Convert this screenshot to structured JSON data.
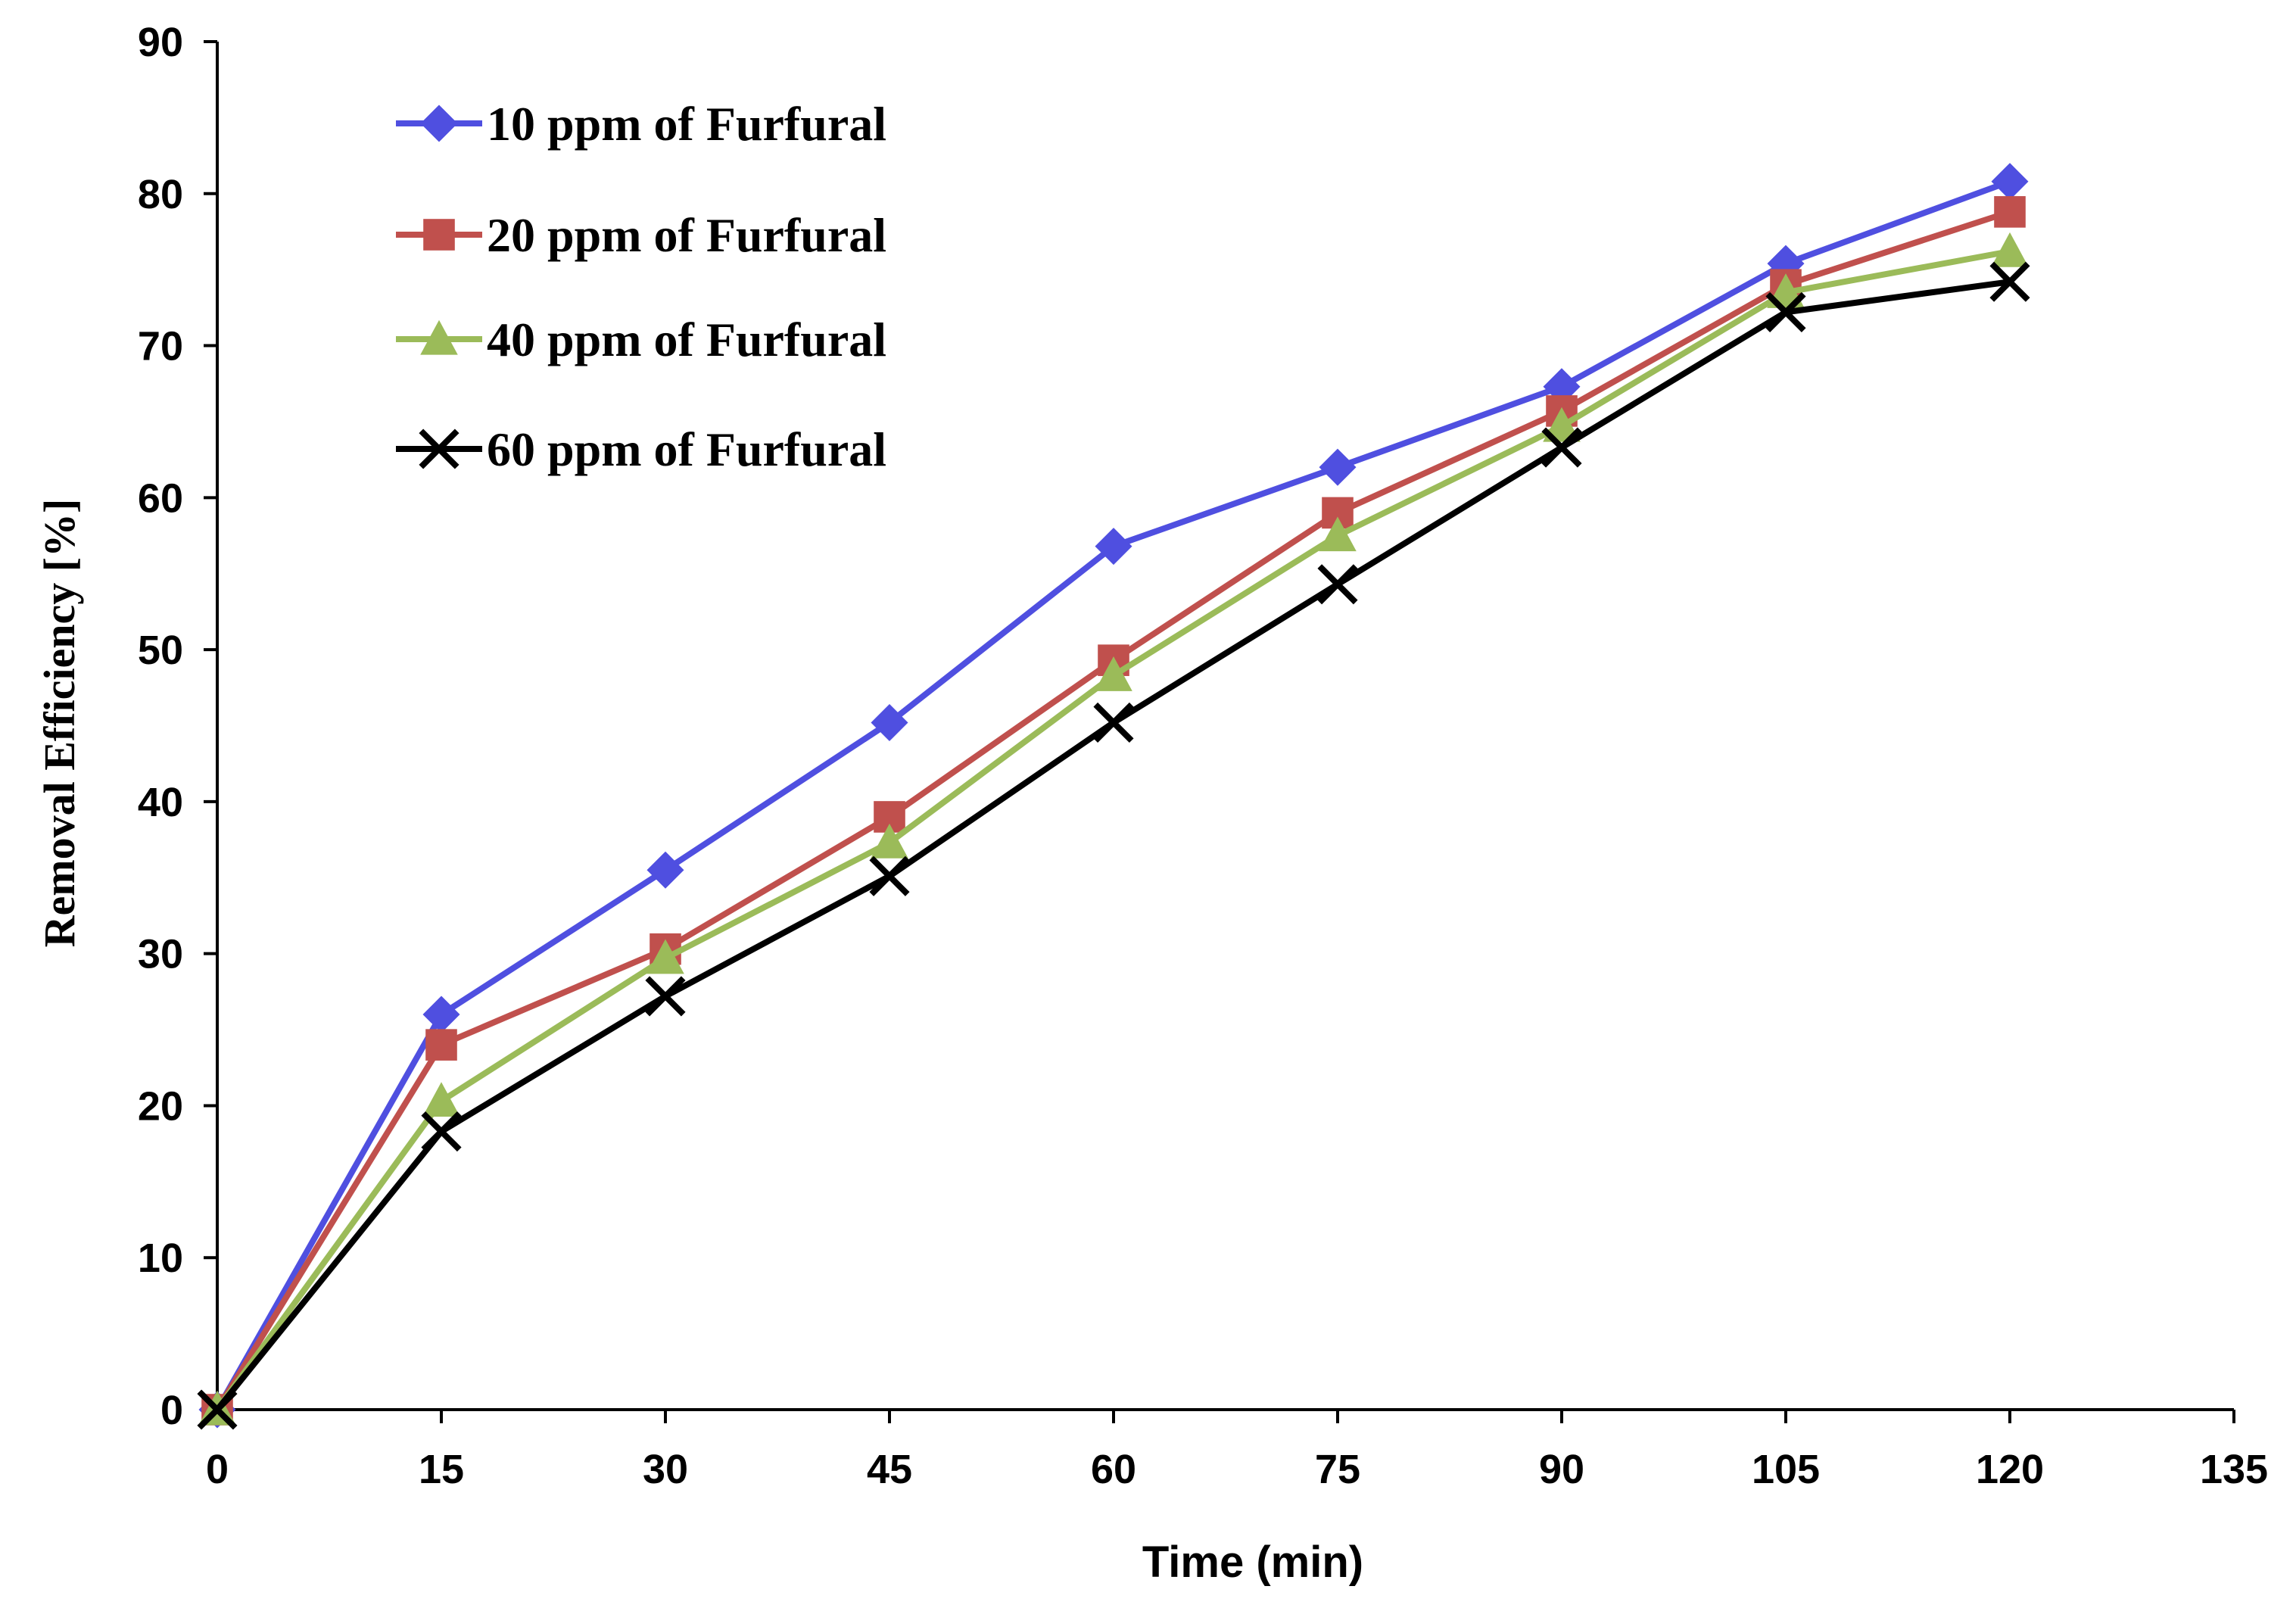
{
  "chart_data": {
    "type": "line",
    "title": "",
    "xlabel": "Time (min)",
    "ylabel": "Removal Efficiency  [%]",
    "xlim": [
      0,
      135
    ],
    "ylim": [
      0,
      90
    ],
    "xticks": [
      0,
      15,
      30,
      45,
      60,
      75,
      90,
      105,
      120,
      135
    ],
    "yticks": [
      0,
      10,
      20,
      30,
      40,
      50,
      60,
      70,
      80,
      90
    ],
    "grid": false,
    "legend_position": "top-left",
    "x": [
      0,
      15,
      30,
      45,
      60,
      75,
      90,
      105,
      120
    ],
    "series": [
      {
        "name": "10 ppm  of Furfural",
        "color": "#4F4FE0",
        "marker": "diamond",
        "values": [
          0,
          26,
          35.5,
          45.2,
          56.8,
          62,
          67.3,
          75.4,
          80.8
        ]
      },
      {
        "name": "20 ppm  of Furfural",
        "color": "#C0504D",
        "marker": "square",
        "values": [
          0,
          24,
          30.3,
          39,
          49.3,
          59,
          65.7,
          74,
          78.8
        ]
      },
      {
        "name": "40 ppm  of Furfural",
        "color": "#9BBB59",
        "marker": "triangle",
        "values": [
          0,
          20.3,
          29.7,
          37.3,
          48.3,
          57.5,
          64.7,
          73.5,
          76.2
        ]
      },
      {
        "name": "60 ppm  of Furfural",
        "color": "#000000",
        "marker": "x",
        "values": [
          0,
          18.3,
          27.2,
          35.1,
          45.2,
          54.3,
          63.3,
          72.2,
          74.2
        ]
      }
    ]
  }
}
